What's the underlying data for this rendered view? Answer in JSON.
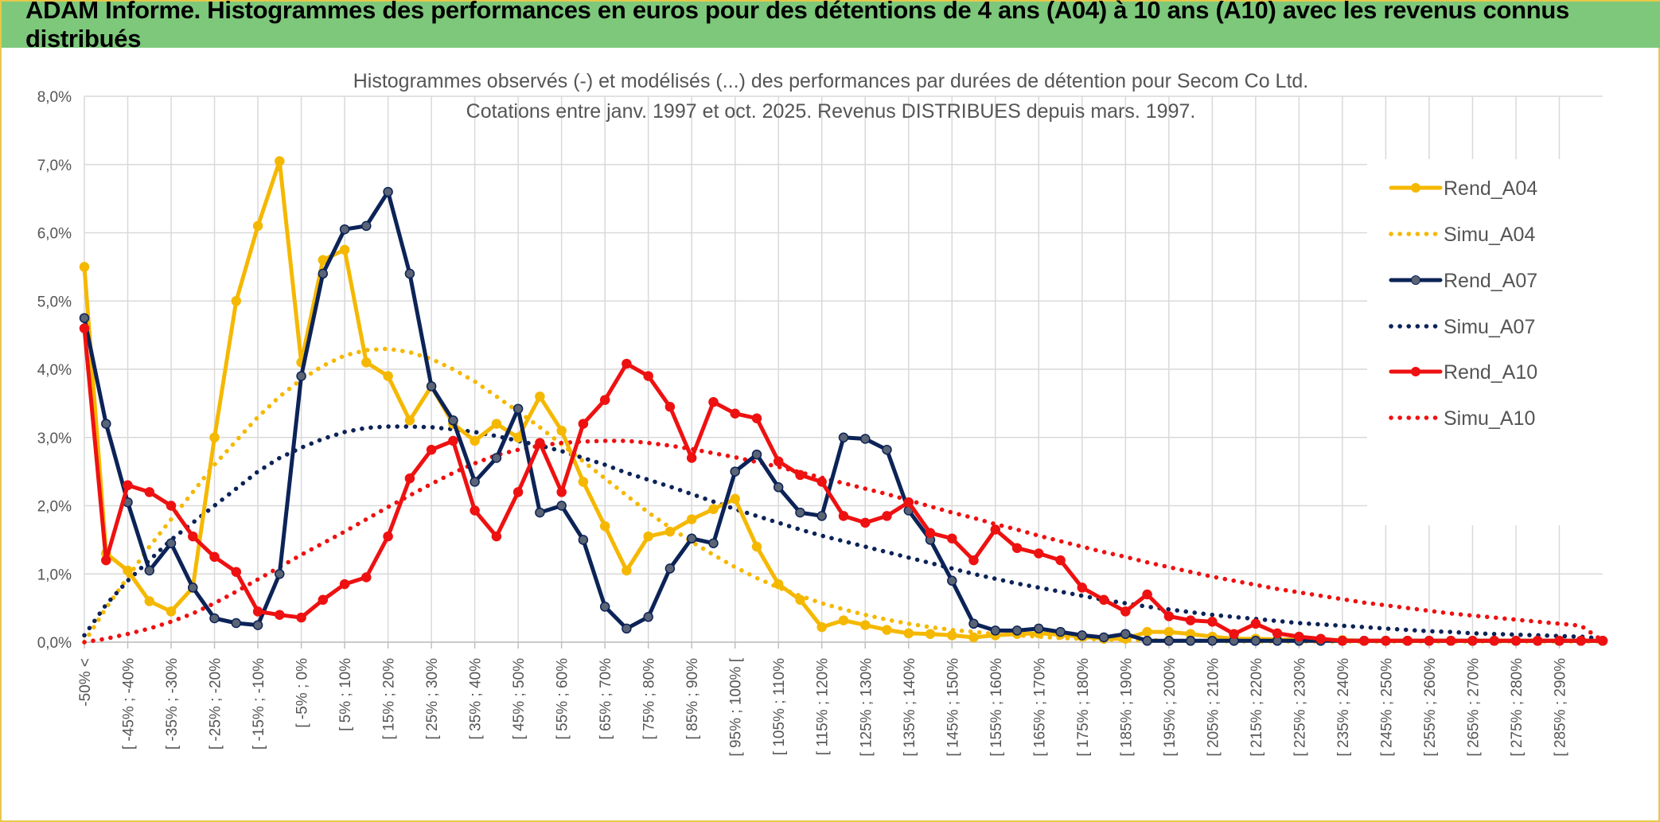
{
  "header": {
    "title": "ADAM Informe. Histogrammes des performances en euros pour des détentions de 4 ans (A04) à 10 ans (A10) avec les revenus connus distribués"
  },
  "chart_data": {
    "type": "line",
    "title": "",
    "subtitle_lines": [
      "Histogrammes observés (-) et modélisés (...) des performances par durées de détention pour Secom Co Ltd.",
      "Cotations entre janv. 1997 et oct. 2025. Revenus DISTRIBUES depuis mars. 1997."
    ],
    "xlabel": "",
    "ylabel": "",
    "ylim": [
      0,
      8
    ],
    "yticks": [
      "0,0%",
      "1,0%",
      "2,0%",
      "3,0%",
      "4,0%",
      "5,0%",
      "6,0%",
      "7,0%",
      "8,0%"
    ],
    "grid": true,
    "legend_position": "top-right",
    "x_tick_labels": [
      "-50% <",
      "[ -45% ; -40%",
      "[ -35% ; -30%",
      "[ -25% ; -20%",
      "[ -15% ; -10%",
      "[ -5% ; 0%",
      "[ 5% ; 10%",
      "[ 15% ; 20%",
      "[ 25% ; 30%",
      "[ 35% ; 40%",
      "[ 45% ; 50%",
      "[ 55% ; 60%",
      "[ 65% ; 70%",
      "[ 75% ; 80%",
      "[ 85% ; 90%",
      "[ 95% ; 100% [",
      "[ 105% ; 110%",
      "[ 115% ; 120%",
      "[ 125% ; 130%",
      "[ 135% ; 140%",
      "[ 145% ; 150%",
      "[ 155% ; 160%",
      "[ 165% ; 170%",
      "[ 175% ; 180%",
      "[ 185% ; 190%",
      "[ 195% ; 200%",
      "[ 205% ; 210%",
      "[ 215% ; 220%",
      "[ 225% ; 230%",
      "[ 235% ; 240%",
      "[ 245% ; 250%",
      "[ 255% ; 260%",
      "[ 265% ; 270%",
      "[ 275% ; 280%",
      "[ 285% ; 290%"
    ],
    "series": [
      {
        "name": "Rend_A04",
        "color": "#f5b800",
        "style": "solid",
        "markers": true,
        "values": [
          5.5,
          1.3,
          1.05,
          0.6,
          0.45,
          0.8,
          3.0,
          5.0,
          6.1,
          7.05,
          4.1,
          5.6,
          5.75,
          4.1,
          3.9,
          3.25,
          3.75,
          3.2,
          2.95,
          3.2,
          3.0,
          3.6,
          3.1,
          2.35,
          1.7,
          1.05,
          1.55,
          1.62,
          1.8,
          1.95,
          2.1,
          1.4,
          0.85,
          0.62,
          0.22,
          0.32,
          0.25,
          0.18,
          0.13,
          0.12,
          0.1,
          0.07,
          0.1,
          0.12,
          0.13,
          0.11,
          0.08,
          0.05,
          0.05,
          0.15,
          0.15,
          0.12,
          0.08,
          0.05,
          0.05,
          0.04,
          0.04,
          0.03,
          0.03,
          0.02,
          0.02,
          0.02,
          0.02,
          0.02,
          0.02,
          0.02,
          0.02,
          0.02,
          0.02,
          0.02,
          0.02
        ]
      },
      {
        "name": "Simu_A04",
        "color": "#f5b800",
        "style": "dotted",
        "markers": false,
        "values": [
          0,
          0.5,
          0.95,
          1.4,
          1.8,
          2.2,
          2.6,
          2.95,
          3.3,
          3.6,
          3.85,
          4.05,
          4.2,
          4.28,
          4.3,
          4.25,
          4.15,
          4.0,
          3.82,
          3.6,
          3.38,
          3.15,
          2.9,
          2.65,
          2.4,
          2.15,
          1.9,
          1.68,
          1.47,
          1.28,
          1.1,
          0.94,
          0.8,
          0.68,
          0.57,
          0.48,
          0.4,
          0.33,
          0.27,
          0.22,
          0.18,
          0.15,
          0.12,
          0.1,
          0.08,
          0.06,
          0.05,
          0.04,
          0.03,
          0.03,
          0.02,
          0.02,
          0.02,
          0.01,
          0.01,
          0.01,
          0.01,
          0.01,
          0.01,
          0.01,
          0.01,
          0.01,
          0.01,
          0.01,
          0.01,
          0.01,
          0.01,
          0.01,
          0.01,
          0.01,
          0.01
        ]
      },
      {
        "name": "Rend_A07",
        "color": "#0c2357",
        "style": "solid",
        "markers": true,
        "values": [
          4.75,
          3.2,
          2.05,
          1.05,
          1.45,
          0.8,
          0.35,
          0.28,
          0.25,
          1.0,
          3.9,
          5.4,
          6.05,
          6.1,
          6.6,
          5.4,
          3.75,
          3.25,
          2.35,
          2.7,
          3.42,
          1.9,
          2.0,
          1.5,
          0.52,
          0.2,
          0.37,
          1.08,
          1.52,
          1.45,
          2.5,
          2.75,
          2.27,
          1.9,
          1.85,
          3.0,
          2.98,
          2.82,
          1.93,
          1.5,
          0.9,
          0.27,
          0.17,
          0.17,
          0.2,
          0.15,
          0.1,
          0.07,
          0.12,
          0.02,
          0.02,
          0.02,
          0.02,
          0.02,
          0.02,
          0.02,
          0.02,
          0.02,
          0.02,
          0.02,
          0.02,
          0.02,
          0.02,
          0.02,
          0.02,
          0.02,
          0.02,
          0.02,
          0.02,
          0.02,
          0.02
        ]
      },
      {
        "name": "Simu_A07",
        "color": "#0c2357",
        "style": "dotted",
        "markers": false,
        "values": [
          0.1,
          0.55,
          0.9,
          1.2,
          1.5,
          1.75,
          2.0,
          2.25,
          2.5,
          2.7,
          2.85,
          2.98,
          3.08,
          3.14,
          3.16,
          3.16,
          3.15,
          3.12,
          3.08,
          3.02,
          2.95,
          2.88,
          2.8,
          2.7,
          2.6,
          2.48,
          2.38,
          2.28,
          2.17,
          2.06,
          1.95,
          1.85,
          1.75,
          1.65,
          1.56,
          1.48,
          1.4,
          1.32,
          1.24,
          1.16,
          1.08,
          1.0,
          0.93,
          0.86,
          0.8,
          0.74,
          0.68,
          0.62,
          0.57,
          0.52,
          0.48,
          0.44,
          0.4,
          0.37,
          0.34,
          0.31,
          0.28,
          0.26,
          0.24,
          0.22,
          0.2,
          0.18,
          0.16,
          0.15,
          0.13,
          0.12,
          0.11,
          0.1,
          0.09,
          0.08,
          0.05
        ]
      },
      {
        "name": "Rend_A10",
        "color": "#ee1111",
        "style": "solid",
        "markers": true,
        "values": [
          4.6,
          1.2,
          2.3,
          2.2,
          2.0,
          1.55,
          1.25,
          1.03,
          0.45,
          0.4,
          0.36,
          0.62,
          0.85,
          0.95,
          1.55,
          2.4,
          2.82,
          2.95,
          1.93,
          1.55,
          2.2,
          2.92,
          2.2,
          3.2,
          3.55,
          4.08,
          3.9,
          3.45,
          2.7,
          3.52,
          3.35,
          3.28,
          2.65,
          2.45,
          2.35,
          1.85,
          1.75,
          1.85,
          2.05,
          1.6,
          1.52,
          1.2,
          1.65,
          1.38,
          1.3,
          1.2,
          0.8,
          0.62,
          0.45,
          0.7,
          0.38,
          0.32,
          0.3,
          0.12,
          0.27,
          0.13,
          0.08,
          0.05,
          0.02,
          0.02,
          0.02,
          0.02,
          0.02,
          0.02,
          0.02,
          0.02,
          0.02,
          0.02,
          0.02,
          0.02,
          0.02
        ]
      },
      {
        "name": "Simu_A10",
        "color": "#ee1111",
        "style": "dotted",
        "markers": false,
        "values": [
          0,
          0.05,
          0.12,
          0.2,
          0.3,
          0.42,
          0.57,
          0.74,
          0.92,
          1.1,
          1.28,
          1.45,
          1.62,
          1.8,
          1.98,
          2.15,
          2.32,
          2.48,
          2.62,
          2.74,
          2.82,
          2.88,
          2.92,
          2.94,
          2.95,
          2.95,
          2.92,
          2.88,
          2.83,
          2.77,
          2.71,
          2.64,
          2.57,
          2.49,
          2.41,
          2.33,
          2.25,
          2.17,
          2.08,
          1.99,
          1.9,
          1.82,
          1.73,
          1.65,
          1.56,
          1.48,
          1.4,
          1.32,
          1.25,
          1.17,
          1.1,
          1.03,
          0.96,
          0.9,
          0.84,
          0.78,
          0.73,
          0.68,
          0.63,
          0.58,
          0.54,
          0.5,
          0.46,
          0.42,
          0.39,
          0.36,
          0.33,
          0.3,
          0.27,
          0.24,
          0.02
        ]
      }
    ]
  }
}
